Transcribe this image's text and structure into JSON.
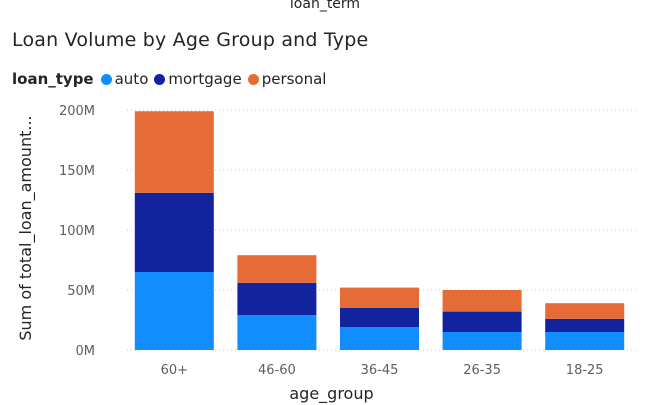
{
  "header": {
    "top_label": "loan_term"
  },
  "chart_data": {
    "type": "bar",
    "stacked": true,
    "title": "Loan Volume by Age Group and Type",
    "xlabel": "age_group",
    "ylabel": "Sum of total_loan_amount...",
    "ylim": [
      0,
      200000000
    ],
    "yticks": [
      {
        "value": 0,
        "label": "0M"
      },
      {
        "value": 50000000,
        "label": "50M"
      },
      {
        "value": 100000000,
        "label": "100M"
      },
      {
        "value": 150000000,
        "label": "150M"
      },
      {
        "value": 200000000,
        "label": "200M"
      }
    ],
    "grid": true,
    "legend_title": "loan_type",
    "legend_position": "top-left",
    "categories": [
      "60+",
      "46-60",
      "36-45",
      "26-35",
      "18-25"
    ],
    "series": [
      {
        "name": "auto",
        "color": "#118DFF",
        "values": [
          65000000,
          29000000,
          19000000,
          15000000,
          15000000
        ]
      },
      {
        "name": "mortgage",
        "color": "#12239E",
        "values": [
          66000000,
          27000000,
          16000000,
          17000000,
          11000000
        ]
      },
      {
        "name": "personal",
        "color": "#E66C37",
        "values": [
          68000000,
          23000000,
          17000000,
          18000000,
          13000000
        ]
      }
    ]
  }
}
